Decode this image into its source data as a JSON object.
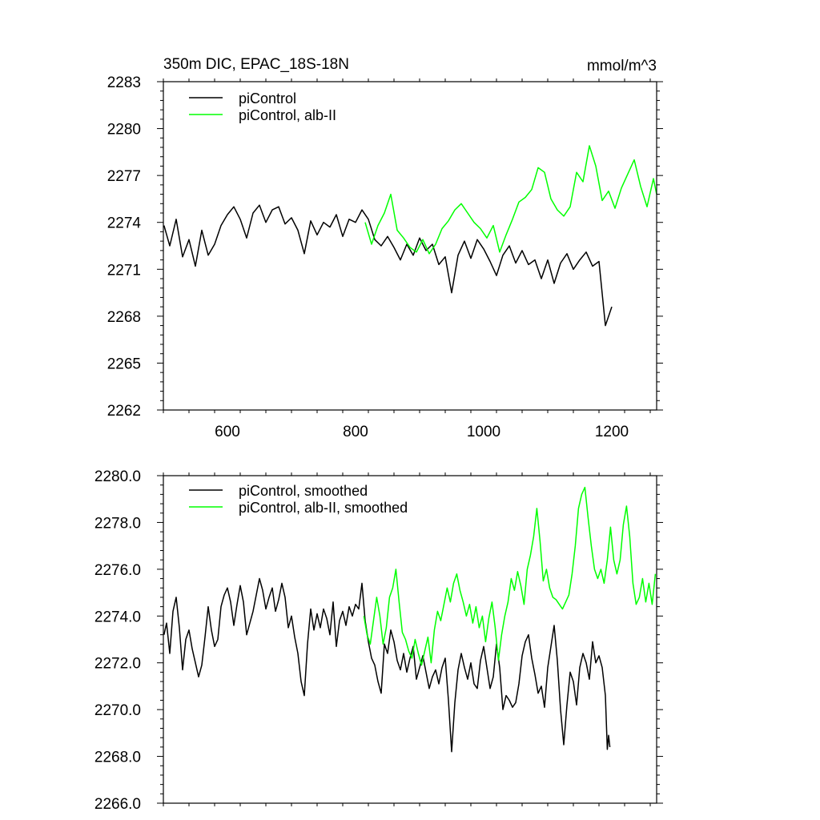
{
  "chart_data": [
    {
      "type": "line",
      "title": "350m DIC, EPAC_18S-18N",
      "units": "mmol/m^3",
      "xlim": [
        500,
        1270
      ],
      "ylim": [
        2262,
        2283
      ],
      "xticks": [
        600,
        800,
        1000,
        1200
      ],
      "xtick_labels": [
        "600",
        "800",
        "1000",
        "1200"
      ],
      "yticks": [
        2262,
        2265,
        2268,
        2271,
        2274,
        2277,
        2280,
        2283
      ],
      "ytick_labels": [
        "2262",
        "2265",
        "2268",
        "2271",
        "2274",
        "2277",
        "2280",
        "2283"
      ],
      "grid": false,
      "legend_position": "top-left",
      "series": [
        {
          "name": "piControl",
          "color": "#000000",
          "x": [
            501,
            510,
            520,
            530,
            540,
            550,
            560,
            570,
            580,
            590,
            600,
            610,
            620,
            630,
            640,
            650,
            660,
            670,
            680,
            690,
            700,
            710,
            720,
            730,
            740,
            750,
            760,
            770,
            780,
            790,
            800,
            810,
            820,
            830,
            840,
            850,
            860,
            870,
            880,
            890,
            900,
            910,
            920,
            930,
            940,
            950,
            960,
            970,
            980,
            990,
            1000,
            1010,
            1020,
            1030,
            1040,
            1050,
            1060,
            1070,
            1080,
            1090,
            1100,
            1110,
            1120,
            1130,
            1140,
            1150,
            1160,
            1170,
            1180,
            1190,
            1200
          ],
          "values": [
            2273.8,
            2272.5,
            2274.2,
            2271.8,
            2272.9,
            2271.2,
            2273.5,
            2271.9,
            2272.6,
            2273.8,
            2274.5,
            2275.0,
            2274.2,
            2273.0,
            2274.6,
            2275.1,
            2274.0,
            2274.8,
            2275.0,
            2273.9,
            2274.3,
            2273.5,
            2272.0,
            2274.1,
            2273.2,
            2274.0,
            2273.7,
            2274.5,
            2273.1,
            2274.2,
            2274.0,
            2274.8,
            2274.2,
            2272.9,
            2272.5,
            2273.1,
            2272.4,
            2271.6,
            2272.6,
            2271.9,
            2273.0,
            2272.2,
            2272.6,
            2271.3,
            2271.8,
            2269.5,
            2271.9,
            2272.8,
            2271.7,
            2272.9,
            2272.3,
            2271.5,
            2270.6,
            2271.9,
            2272.5,
            2271.4,
            2272.2,
            2271.3,
            2271.6,
            2270.4,
            2271.6,
            2270.1,
            2271.4,
            2272.0,
            2271.0,
            2271.6,
            2272.1,
            2271.2,
            2271.5,
            2267.4,
            2268.6
          ]
        },
        {
          "name": "piControl, alb-II",
          "color": "#00ff00",
          "x": [
            815,
            825,
            835,
            845,
            855,
            865,
            875,
            885,
            895,
            905,
            915,
            925,
            935,
            945,
            955,
            965,
            975,
            985,
            995,
            1005,
            1015,
            1025,
            1035,
            1045,
            1055,
            1065,
            1075,
            1085,
            1095,
            1105,
            1115,
            1125,
            1135,
            1145,
            1155,
            1165,
            1175,
            1185,
            1195,
            1205,
            1215,
            1225,
            1235,
            1245,
            1255,
            1265,
            1270
          ],
          "values": [
            2274.0,
            2272.6,
            2273.8,
            2274.6,
            2275.8,
            2273.5,
            2273.0,
            2272.4,
            2272.1,
            2272.9,
            2272.0,
            2272.6,
            2273.6,
            2274.1,
            2274.8,
            2275.2,
            2274.6,
            2274.0,
            2273.6,
            2273.0,
            2273.8,
            2272.1,
            2273.2,
            2274.2,
            2275.3,
            2275.6,
            2276.1,
            2277.5,
            2277.2,
            2275.5,
            2274.8,
            2274.4,
            2275.0,
            2277.2,
            2276.6,
            2278.9,
            2277.6,
            2275.4,
            2276.0,
            2274.9,
            2276.2,
            2277.1,
            2278.0,
            2276.3,
            2275.0,
            2276.8,
            2275.8
          ]
        }
      ]
    },
    {
      "type": "line",
      "xlim": [
        500,
        1270
      ],
      "ylim": [
        2266.0,
        2280.0
      ],
      "xticks": [
        600,
        800,
        1000,
        1200
      ],
      "yticks": [
        2266.0,
        2268.0,
        2270.0,
        2272.0,
        2274.0,
        2276.0,
        2278.0,
        2280.0
      ],
      "ytick_labels": [
        "2266.0",
        "2268.0",
        "2270.0",
        "2272.0",
        "2274.0",
        "2276.0",
        "2278.0",
        "2280.0"
      ],
      "grid": false,
      "legend_position": "top-left",
      "series": [
        {
          "name": "piControl, smoothed",
          "color": "#000000",
          "x": [
            501,
            505,
            510,
            515,
            520,
            525,
            530,
            535,
            540,
            545,
            550,
            555,
            560,
            565,
            570,
            575,
            580,
            585,
            590,
            595,
            600,
            605,
            610,
            615,
            620,
            625,
            630,
            635,
            640,
            645,
            650,
            655,
            660,
            665,
            670,
            675,
            680,
            685,
            690,
            695,
            700,
            705,
            710,
            715,
            720,
            725,
            730,
            735,
            740,
            745,
            750,
            755,
            760,
            765,
            770,
            775,
            780,
            785,
            790,
            795,
            800,
            805,
            810,
            815,
            820,
            825,
            830,
            835,
            840,
            845,
            850,
            855,
            860,
            865,
            870,
            875,
            880,
            885,
            890,
            895,
            900,
            905,
            910,
            915,
            920,
            925,
            930,
            935,
            940,
            945,
            950,
            955,
            960,
            965,
            970,
            975,
            980,
            985,
            990,
            995,
            1000,
            1005,
            1010,
            1015,
            1020,
            1025,
            1030,
            1035,
            1040,
            1045,
            1050,
            1055,
            1060,
            1065,
            1070,
            1075,
            1080,
            1085,
            1090,
            1095,
            1100,
            1105,
            1110,
            1115,
            1120,
            1125,
            1130,
            1135,
            1140,
            1145,
            1150,
            1155,
            1160,
            1165,
            1170,
            1175,
            1180,
            1185,
            1190,
            1193,
            1195,
            1197
          ],
          "values": [
            2273.2,
            2273.7,
            2272.4,
            2274.2,
            2274.8,
            2273.5,
            2271.7,
            2273.0,
            2273.4,
            2272.6,
            2272.0,
            2271.4,
            2271.9,
            2273.1,
            2274.4,
            2273.4,
            2272.7,
            2273.0,
            2274.4,
            2274.9,
            2275.2,
            2274.6,
            2273.6,
            2274.5,
            2275.3,
            2274.6,
            2273.2,
            2273.7,
            2274.2,
            2274.9,
            2275.6,
            2275.1,
            2274.3,
            2274.8,
            2275.2,
            2274.2,
            2274.7,
            2275.4,
            2274.8,
            2273.5,
            2274.0,
            2273.1,
            2272.4,
            2271.2,
            2270.6,
            2272.8,
            2274.3,
            2273.4,
            2274.1,
            2273.5,
            2274.3,
            2273.9,
            2273.2,
            2274.6,
            2272.7,
            2273.8,
            2274.2,
            2273.6,
            2274.4,
            2274.0,
            2274.5,
            2274.3,
            2275.4,
            2273.8,
            2272.9,
            2272.2,
            2271.9,
            2271.2,
            2270.7,
            2272.8,
            2272.4,
            2273.4,
            2272.9,
            2272.1,
            2271.7,
            2272.4,
            2271.6,
            2272.2,
            2272.7,
            2271.3,
            2271.8,
            2272.3,
            2271.6,
            2270.9,
            2271.4,
            2271.7,
            2271.1,
            2271.8,
            2272.2,
            2270.4,
            2268.2,
            2270.3,
            2271.7,
            2272.4,
            2271.8,
            2271.3,
            2272.0,
            2271.1,
            2270.9,
            2272.1,
            2272.7,
            2271.8,
            2270.9,
            2271.4,
            2272.8,
            2271.8,
            2270.0,
            2270.6,
            2270.4,
            2270.1,
            2270.3,
            2271.1,
            2272.3,
            2272.9,
            2273.2,
            2272.2,
            2271.5,
            2270.7,
            2271.0,
            2270.1,
            2271.8,
            2272.7,
            2273.6,
            2272.1,
            2270.0,
            2268.5,
            2270.2,
            2271.6,
            2271.2,
            2270.2,
            2271.8,
            2272.4,
            2272.0,
            2271.3,
            2272.9,
            2272.0,
            2272.3,
            2271.8,
            2270.6,
            2268.3,
            2268.9,
            2268.4
          ]
        },
        {
          "name": "piControl, alb-II, smoothed",
          "color": "#00ff00",
          "x": [
            813,
            818,
            823,
            828,
            833,
            838,
            843,
            848,
            853,
            858,
            863,
            868,
            873,
            878,
            883,
            888,
            893,
            898,
            903,
            908,
            913,
            918,
            923,
            928,
            933,
            938,
            943,
            948,
            953,
            958,
            963,
            968,
            973,
            978,
            983,
            988,
            993,
            998,
            1003,
            1008,
            1013,
            1018,
            1023,
            1028,
            1033,
            1038,
            1043,
            1048,
            1053,
            1058,
            1063,
            1068,
            1073,
            1078,
            1083,
            1088,
            1093,
            1098,
            1103,
            1108,
            1113,
            1118,
            1123,
            1128,
            1133,
            1138,
            1143,
            1148,
            1153,
            1158,
            1163,
            1168,
            1173,
            1178,
            1183,
            1188,
            1193,
            1198,
            1203,
            1208,
            1213,
            1218,
            1223,
            1228,
            1233,
            1238,
            1243,
            1248,
            1253,
            1258,
            1263,
            1268
          ],
          "values": [
            2274.0,
            2273.2,
            2272.8,
            2273.8,
            2274.8,
            2274.0,
            2272.8,
            2273.5,
            2274.8,
            2275.2,
            2276.0,
            2274.6,
            2273.3,
            2273.0,
            2272.5,
            2272.2,
            2273.0,
            2272.4,
            2271.9,
            2272.5,
            2273.1,
            2272.0,
            2273.4,
            2274.2,
            2273.8,
            2274.5,
            2275.2,
            2274.6,
            2275.4,
            2275.8,
            2275.1,
            2274.6,
            2274.0,
            2274.5,
            2273.7,
            2274.4,
            2273.5,
            2274.0,
            2272.9,
            2273.9,
            2274.6,
            2273.5,
            2272.1,
            2273.2,
            2274.0,
            2274.6,
            2275.6,
            2275.1,
            2275.9,
            2275.3,
            2274.5,
            2276.0,
            2276.6,
            2277.4,
            2278.6,
            2277.2,
            2275.5,
            2276.0,
            2275.2,
            2274.8,
            2274.7,
            2274.5,
            2274.3,
            2274.6,
            2274.9,
            2275.8,
            2277.0,
            2278.6,
            2279.2,
            2279.5,
            2278.2,
            2277.0,
            2276.0,
            2275.6,
            2276.0,
            2275.4,
            2276.4,
            2277.8,
            2276.4,
            2275.8,
            2276.4,
            2277.9,
            2278.7,
            2277.4,
            2275.4,
            2274.5,
            2274.8,
            2275.6,
            2274.6,
            2275.4,
            2274.5,
            2275.8
          ]
        }
      ]
    }
  ]
}
